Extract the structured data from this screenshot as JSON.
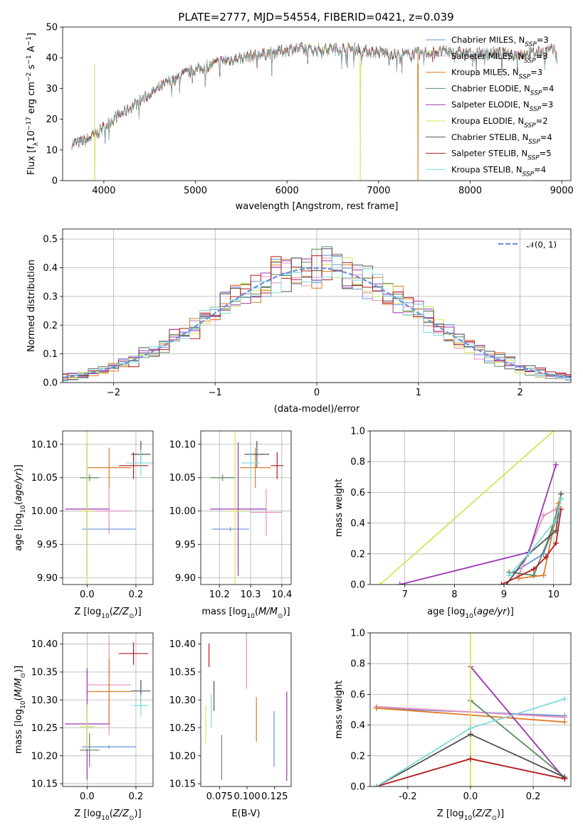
{
  "figure_title": "PLATE=2777, MJD=54554, FIBERID=0421, z=0.039",
  "colors": {
    "Chabrier MILES": "#6a8fdc",
    "Salpeter MILES": "#e68fc0",
    "Kroupa MILES": "#de7b26",
    "Chabrier ELODIE": "#5d8b5d",
    "Salpeter ELODIE": "#9a35b0",
    "Kroupa ELODIE": "#d6e35a",
    "Chabrier STELIB": "#505050",
    "Salpeter STELIB": "#b3181c",
    "Kroupa STELIB": "#7fd9dc",
    "normal_curve": "#6a8fdc"
  },
  "chart_data": [
    {
      "id": "spectrum",
      "type": "line",
      "title": "PLATE=2777, MJD=54554, FIBERID=0421, z=0.039",
      "xlabel": "wavelength [Angstrom, rest frame]",
      "ylabel": "Flux [f_λ10^-17 erg cm^-2 s^-1 A^-1]",
      "xlim": [
        3550,
        9100
      ],
      "ylim": [
        0,
        50
      ],
      "xticks": [
        4000,
        5000,
        6000,
        7000,
        8000,
        9000
      ],
      "yticks": [
        0,
        10,
        20,
        30,
        40,
        50
      ],
      "legend_placement": "upper right",
      "legend": [
        {
          "label": "Chabrier MILES, N",
          "sub": "SSP",
          "suffix": "=3"
        },
        {
          "label": "Salpeter MILES, N",
          "sub": "SSP",
          "suffix": "=3"
        },
        {
          "label": "Kroupa MILES, N",
          "sub": "SSP",
          "suffix": "=3"
        },
        {
          "label": "Chabrier ELODIE, N",
          "sub": "SSP",
          "suffix": "=4"
        },
        {
          "label": "Salpeter ELODIE, N",
          "sub": "SSP",
          "suffix": "=3"
        },
        {
          "label": "Kroupa ELODIE, N",
          "sub": "SSP",
          "suffix": "=2"
        },
        {
          "label": "Chabrier STELIB, N",
          "sub": "SSP",
          "suffix": "=4"
        },
        {
          "label": "Salpeter STELIB, N",
          "sub": "SSP",
          "suffix": "=5"
        },
        {
          "label": "Kroupa STELIB, N",
          "sub": "SSP",
          "suffix": "=4"
        }
      ],
      "continuum_x": [
        3650,
        3800,
        3950,
        4100,
        4300,
        4500,
        4700,
        4900,
        5100,
        5300,
        5500,
        5700,
        5900,
        6100,
        6300,
        6500,
        6700,
        6900,
        7100,
        7300,
        7500,
        7700,
        7900,
        8100,
        8300,
        8500,
        8700,
        8900
      ],
      "continuum_y": [
        12,
        13,
        16,
        20,
        24,
        28,
        32,
        35,
        37,
        39,
        40,
        41,
        42,
        43,
        42.5,
        43,
        43,
        42,
        41.5,
        41,
        41.5,
        42,
        41.5,
        41.5,
        41.5,
        41,
        41.5,
        42.5
      ],
      "dropouts": [
        {
          "x": 3900,
          "series": "Kroupa ELODIE"
        },
        {
          "x": 6800,
          "series": "Kroupa ELODIE"
        },
        {
          "x": 7430,
          "series": "Kroupa MILES"
        }
      ]
    },
    {
      "id": "residual_hist",
      "type": "step",
      "xlabel": "(data-model)/error",
      "ylabel": "Normed distribution",
      "xlim": [
        -2.5,
        2.5
      ],
      "ylim": [
        0,
        0.535
      ],
      "xticks": [
        -2,
        -1,
        0,
        1,
        2
      ],
      "yticks": [
        0.0,
        0.1,
        0.2,
        0.3,
        0.4,
        0.5
      ],
      "grid": true,
      "legend_placement": "upper right",
      "legend": [
        "𝒩(0, 1)"
      ],
      "bin_width": 0.1
    },
    {
      "id": "age_vs_Z",
      "type": "errorbar",
      "xlabel": "Z [log10(Z/Z⊙)]",
      "ylabel": "age  [log10(age/yr)]",
      "xlim": [
        -0.1,
        0.27
      ],
      "ylim": [
        9.89,
        10.12
      ],
      "xticks": [
        0.0,
        0.2
      ],
      "yticks": [
        9.9,
        9.95,
        10.0,
        10.05,
        10.1
      ],
      "grid": true,
      "points": [
        {
          "series": "Chabrier MILES",
          "x": 0.09,
          "y": 9.973,
          "xerr": 0.11,
          "yerr": 0.003
        },
        {
          "series": "Salpeter MILES",
          "x": 0.09,
          "y": 10.0,
          "xerr": 0.09,
          "yerr": 0.035
        },
        {
          "series": "Kroupa MILES",
          "x": 0.09,
          "y": 10.065,
          "xerr": 0.09,
          "yerr": 0.03
        },
        {
          "series": "Chabrier ELODIE",
          "x": 0.01,
          "y": 10.05,
          "xerr": 0.04,
          "yerr": 0.005
        },
        {
          "series": "Salpeter ELODIE",
          "x": 0.0,
          "y": 10.003,
          "xerr": 0.09,
          "yerr": 0.1
        },
        {
          "series": "Kroupa ELODIE",
          "x": 0.0,
          "y": 10.0,
          "xerr": 0.03,
          "yerr": 0.12
        },
        {
          "series": "Chabrier STELIB",
          "x": 0.22,
          "y": 10.085,
          "xerr": 0.04,
          "yerr": 0.02
        },
        {
          "series": "Salpeter STELIB",
          "x": 0.19,
          "y": 10.068,
          "xerr": 0.06,
          "yerr": 0.02
        },
        {
          "series": "Kroupa STELIB",
          "x": 0.22,
          "y": 10.072,
          "xerr": 0.06,
          "yerr": 0.02
        }
      ]
    },
    {
      "id": "age_vs_mass",
      "type": "errorbar",
      "xlabel": "mass [log10(M/M⊙)]",
      "ylabel": "",
      "xlim": [
        10.14,
        10.43
      ],
      "ylim": [
        9.89,
        10.12
      ],
      "xticks": [
        10.2,
        10.3,
        10.4
      ],
      "yticks": [
        9.9,
        9.95,
        10.0,
        10.05,
        10.1
      ],
      "grid": true,
      "points": [
        {
          "series": "Chabrier MILES",
          "x": 10.235,
          "y": 9.973,
          "xerr": 0.06,
          "yerr": 0.003
        },
        {
          "series": "Salpeter MILES",
          "x": 10.35,
          "y": 9.998,
          "xerr": 0.05,
          "yerr": 0.035
        },
        {
          "series": "Kroupa MILES",
          "x": 10.315,
          "y": 10.065,
          "xerr": 0.05,
          "yerr": 0.03
        },
        {
          "series": "Chabrier ELODIE",
          "x": 10.21,
          "y": 10.05,
          "xerr": 0.04,
          "yerr": 0.005
        },
        {
          "series": "Salpeter ELODIE",
          "x": 10.26,
          "y": 10.003,
          "xerr": 0.09,
          "yerr": 0.1
        },
        {
          "series": "Kroupa ELODIE",
          "x": 10.25,
          "y": 10.0,
          "xerr": 0.03,
          "yerr": 0.12
        },
        {
          "series": "Chabrier STELIB",
          "x": 10.32,
          "y": 10.085,
          "xerr": 0.04,
          "yerr": 0.02
        },
        {
          "series": "Salpeter STELIB",
          "x": 10.385,
          "y": 10.068,
          "xerr": 0.02,
          "yerr": 0.02
        },
        {
          "series": "Kroupa STELIB",
          "x": 10.3,
          "y": 10.072,
          "xerr": 0.03,
          "yerr": 0.02
        }
      ]
    },
    {
      "id": "mass_weight_vs_age",
      "type": "line",
      "xlabel": "age  [log10(age/yr)]",
      "ylabel": "mass weight",
      "xlim": [
        6.3,
        10.35
      ],
      "ylim": [
        0,
        1
      ],
      "xticks": [
        7,
        8,
        9,
        10
      ],
      "yticks": [
        0.0,
        0.2,
        0.4,
        0.6,
        0.8,
        1.0
      ],
      "grid": true,
      "series": [
        {
          "name": "Chabrier MILES",
          "x": [
            9.2,
            9.8,
            10.1
          ],
          "y": [
            0.08,
            0.2,
            0.46
          ]
        },
        {
          "name": "Salpeter MILES",
          "x": [
            9.3,
            9.8,
            10.05
          ],
          "y": [
            0.06,
            0.45,
            0.49
          ]
        },
        {
          "name": "Kroupa MILES",
          "x": [
            9.3,
            9.8,
            10.1
          ],
          "y": [
            0.04,
            0.06,
            0.53
          ]
        },
        {
          "name": "Chabrier ELODIE",
          "x": [
            9.1,
            9.6,
            9.9,
            10.15
          ],
          "y": [
            0.08,
            0.06,
            0.3,
            0.56
          ]
        },
        {
          "name": "Salpeter ELODIE",
          "x": [
            6.9,
            9.5,
            10.05
          ],
          "y": [
            0.0,
            0.21,
            0.78
          ]
        },
        {
          "name": "Kroupa ELODIE",
          "x": [
            6.5,
            10.0
          ],
          "y": [
            0.0,
            1.0
          ]
        },
        {
          "name": "Chabrier STELIB",
          "x": [
            9.05,
            9.5,
            10.05,
            10.15
          ],
          "y": [
            0.0,
            0.2,
            0.35,
            0.59
          ]
        },
        {
          "name": "Salpeter STELIB",
          "x": [
            8.95,
            9.6,
            9.85,
            10.05,
            10.15
          ],
          "y": [
            0.0,
            0.1,
            0.18,
            0.27,
            0.49
          ]
        },
        {
          "name": "Kroupa STELIB",
          "x": [
            9.1,
            9.5,
            10.05,
            10.15
          ],
          "y": [
            0.06,
            0.2,
            0.42,
            0.56
          ]
        }
      ]
    },
    {
      "id": "mass_vs_Z",
      "type": "errorbar",
      "xlabel": "Z [log10(Z/Z⊙)]",
      "ylabel": "mass [log10(M/M⊙)]",
      "xlim": [
        -0.1,
        0.27
      ],
      "ylim": [
        10.145,
        10.42
      ],
      "xticks": [
        0.0,
        0.2
      ],
      "yticks": [
        10.15,
        10.2,
        10.25,
        10.3,
        10.35,
        10.4
      ],
      "grid": true,
      "points": [
        {
          "series": "Chabrier MILES",
          "x": 0.09,
          "y": 10.216,
          "xerr": 0.11,
          "yerr": 0.003
        },
        {
          "series": "Salpeter MILES",
          "x": 0.09,
          "y": 10.327,
          "xerr": 0.09,
          "yerr": 0.09
        },
        {
          "series": "Kroupa MILES",
          "x": 0.09,
          "y": 10.315,
          "xerr": 0.09,
          "yerr": 0.06
        },
        {
          "series": "Chabrier ELODIE",
          "x": 0.01,
          "y": 10.21,
          "xerr": 0.04,
          "yerr": 0.03
        },
        {
          "series": "Salpeter ELODIE",
          "x": 0.0,
          "y": 10.257,
          "xerr": 0.09,
          "yerr": 0.1
        },
        {
          "series": "Kroupa ELODIE",
          "x": 0.0,
          "y": 10.252,
          "xerr": 0.03,
          "yerr": 0.04
        },
        {
          "series": "Chabrier STELIB",
          "x": 0.22,
          "y": 10.316,
          "xerr": 0.04,
          "yerr": 0.02
        },
        {
          "series": "Salpeter STELIB",
          "x": 0.19,
          "y": 10.383,
          "xerr": 0.06,
          "yerr": 0.02
        },
        {
          "series": "Kroupa STELIB",
          "x": 0.22,
          "y": 10.29,
          "xerr": 0.03,
          "yerr": 0.02
        }
      ]
    },
    {
      "id": "mass_vs_EBV",
      "type": "errorbar",
      "xlabel": "E(B-V)",
      "ylabel": "",
      "xlim": [
        0.058,
        0.14
      ],
      "ylim": [
        10.145,
        10.42
      ],
      "xticks": [
        0.075,
        0.1,
        0.125
      ],
      "yticks": [
        10.15,
        10.2,
        10.25,
        10.3,
        10.35,
        10.4
      ],
      "grid": false,
      "points": [
        {
          "series": "Chabrier MILES",
          "x": 0.1245,
          "y": 10.23,
          "xerr": 0.0,
          "yerr": 0.05
        },
        {
          "series": "Salpeter MILES",
          "x": 0.0995,
          "y": 10.37,
          "xerr": 0.0,
          "yerr": 0.05
        },
        {
          "series": "Kroupa MILES",
          "x": 0.1085,
          "y": 10.265,
          "xerr": 0.0,
          "yerr": 0.04
        },
        {
          "series": "Chabrier ELODIE",
          "x": 0.077,
          "y": 10.197,
          "xerr": 0.0,
          "yerr": 0.04
        },
        {
          "series": "Salpeter ELODIE",
          "x": 0.136,
          "y": 10.235,
          "xerr": 0.0,
          "yerr": 0.08
        },
        {
          "series": "Kroupa ELODIE",
          "x": 0.0625,
          "y": 10.255,
          "xerr": 0.0,
          "yerr": 0.035
        },
        {
          "series": "Chabrier STELIB",
          "x": 0.07,
          "y": 10.307,
          "xerr": 0.0,
          "yerr": 0.027
        },
        {
          "series": "Salpeter STELIB",
          "x": 0.0655,
          "y": 10.38,
          "xerr": 0.0,
          "yerr": 0.021
        },
        {
          "series": "Kroupa STELIB",
          "x": 0.0675,
          "y": 10.28,
          "xerr": 0.0,
          "yerr": 0.03
        }
      ]
    },
    {
      "id": "mass_weight_vs_Z",
      "type": "line",
      "xlabel": "Z [log10(Z/Z⊙)]",
      "ylabel": "mass weight",
      "xlim": [
        -0.32,
        0.32
      ],
      "ylim": [
        0,
        1
      ],
      "xticks": [
        -0.2,
        0.0,
        0.2
      ],
      "yticks": [
        0.0,
        0.2,
        0.4,
        0.6,
        0.8,
        1.0
      ],
      "grid": true,
      "series": [
        {
          "name": "Chabrier MILES",
          "x": [
            -0.3,
            0.3
          ],
          "y": [
            0.51,
            0.46
          ]
        },
        {
          "name": "Salpeter MILES",
          "x": [
            -0.3,
            0.3
          ],
          "y": [
            0.52,
            0.45
          ]
        },
        {
          "name": "Kroupa MILES",
          "x": [
            -0.3,
            0.3
          ],
          "y": [
            0.51,
            0.42
          ]
        },
        {
          "name": "Chabrier ELODIE",
          "x": [
            0.0,
            0.3
          ],
          "y": [
            0.56,
            0.06
          ]
        },
        {
          "name": "Salpeter ELODIE",
          "x": [
            0.0,
            0.3
          ],
          "y": [
            0.78,
            0.05
          ]
        },
        {
          "name": "Kroupa ELODIE",
          "x": [
            0.0,
            0.0
          ],
          "y": [
            0.0,
            1.0
          ]
        },
        {
          "name": "Chabrier STELIB",
          "x": [
            -0.3,
            0.0,
            0.3
          ],
          "y": [
            0.0,
            0.34,
            0.06
          ]
        },
        {
          "name": "Salpeter STELIB",
          "x": [
            -0.3,
            0.0,
            0.3
          ],
          "y": [
            0.0,
            0.18,
            0.05
          ]
        },
        {
          "name": "Kroupa STELIB",
          "x": [
            -0.3,
            0.0,
            0.3
          ],
          "y": [
            0.0,
            0.38,
            0.57
          ]
        }
      ]
    }
  ]
}
